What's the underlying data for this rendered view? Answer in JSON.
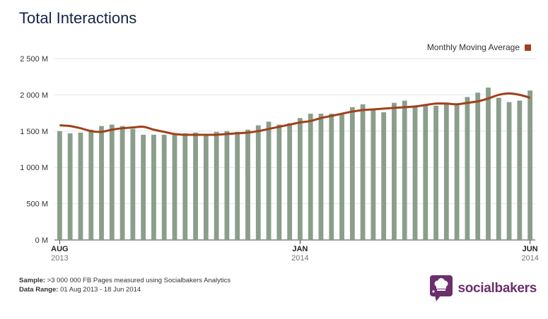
{
  "title": "Total Interactions",
  "legend": {
    "label": "Monthly Moving Average",
    "color": "#a0401b"
  },
  "footer": {
    "sample_label": "Sample:",
    "sample_text": ">3 000 000 FB Pages measured using Socialbakers Analytics",
    "range_label": "Data Range:",
    "range_text": "01 Aug 2013 - 18 Jun 2014"
  },
  "brand": {
    "name": "socialbakers",
    "logo_icon": "chef-hat-speech-bubble-icon",
    "color": "#6b2f6c"
  },
  "colors": {
    "bar": "#8a9e8b",
    "line": "#a0401b",
    "grid": "#e6e6e6"
  },
  "chart_data": {
    "type": "bar",
    "title": "Total Interactions",
    "ylim": [
      0,
      2500
    ],
    "y_ticks": [
      0,
      500,
      1000,
      1500,
      2000,
      2500
    ],
    "y_tick_labels": [
      "0 M",
      "500 M",
      "1 000 M",
      "1 500 M",
      "2 000 M",
      "2 500 M"
    ],
    "x_ticks": [
      {
        "index": 0,
        "month": "AUG",
        "year": "2013"
      },
      {
        "index": 23,
        "month": "JAN",
        "year": "2014"
      },
      {
        "index": 45,
        "month": "JUN",
        "year": "2014"
      }
    ],
    "grid": true,
    "legend_position": "top-right",
    "series": [
      {
        "type": "bar",
        "values": [
          1500,
          1470,
          1480,
          1520,
          1570,
          1590,
          1570,
          1530,
          1450,
          1450,
          1450,
          1460,
          1470,
          1480,
          1440,
          1490,
          1500,
          1490,
          1520,
          1580,
          1630,
          1590,
          1610,
          1680,
          1740,
          1740,
          1740,
          1730,
          1830,
          1870,
          1800,
          1760,
          1890,
          1920,
          1850,
          1860,
          1850,
          1880,
          1880,
          1970,
          2030,
          2100,
          1960,
          1900,
          1920,
          2060
        ]
      },
      {
        "name": "Monthly Moving Average",
        "type": "line",
        "values": [
          1580,
          1570,
          1540,
          1500,
          1490,
          1520,
          1540,
          1550,
          1560,
          1520,
          1490,
          1460,
          1450,
          1450,
          1450,
          1450,
          1460,
          1470,
          1480,
          1500,
          1530,
          1560,
          1590,
          1620,
          1640,
          1680,
          1710,
          1740,
          1770,
          1790,
          1800,
          1810,
          1820,
          1830,
          1840,
          1860,
          1880,
          1880,
          1870,
          1890,
          1910,
          1950,
          2000,
          2020,
          2000,
          1960
        ]
      }
    ]
  }
}
